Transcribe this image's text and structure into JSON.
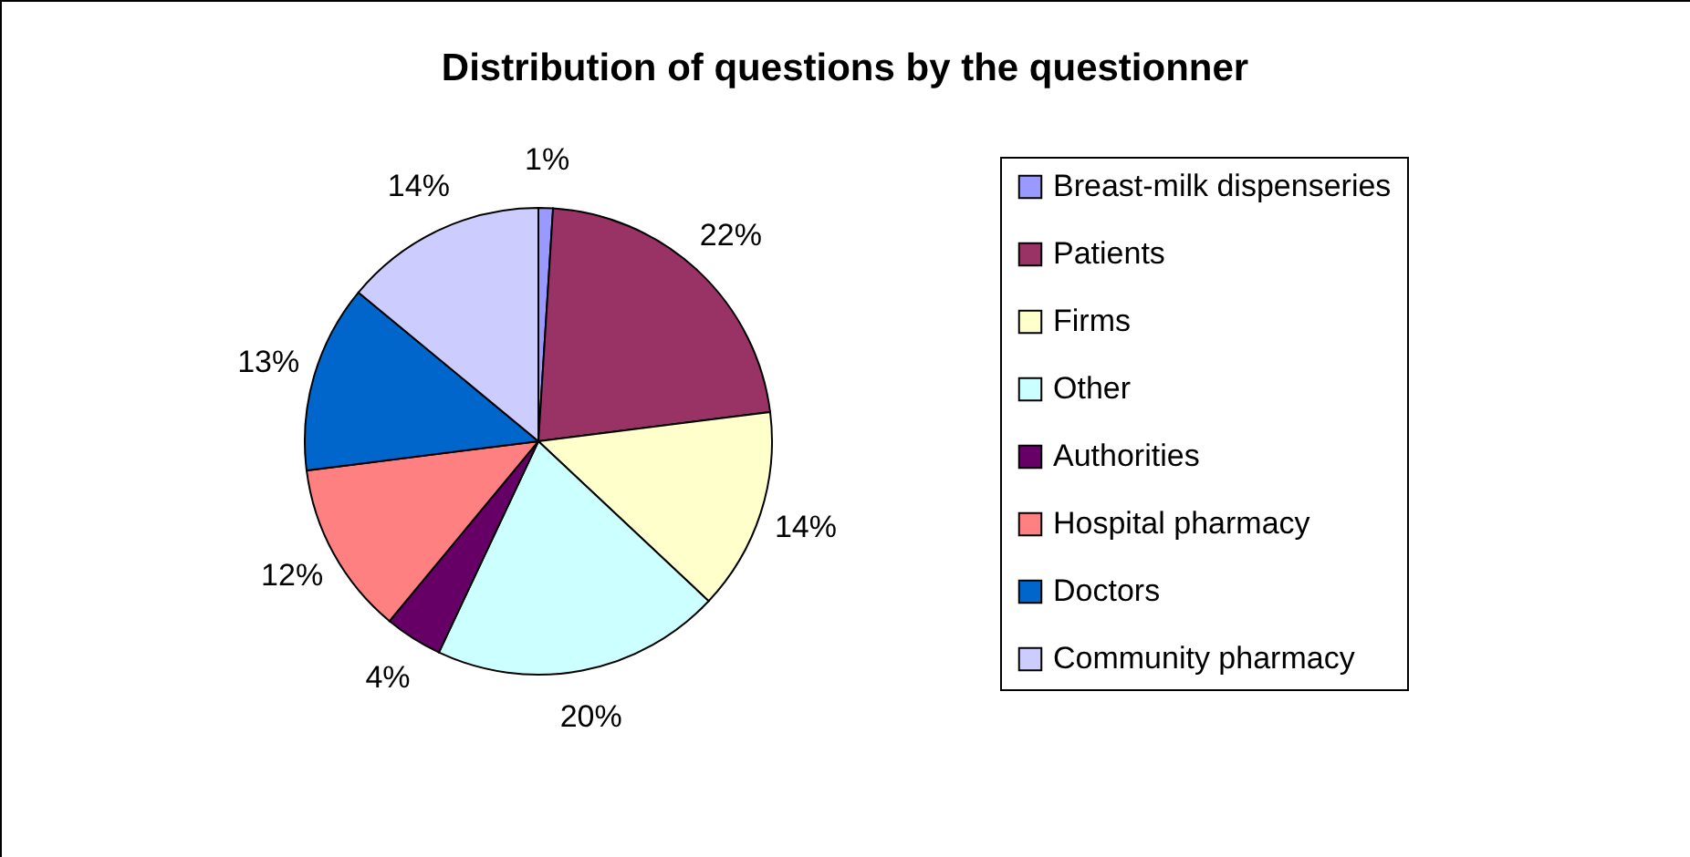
{
  "chart_data": {
    "type": "pie",
    "title": "Distribution of questions by the questionner",
    "categories": [
      "Breast-milk dispenseries",
      "Patients",
      "Firms",
      "Other",
      "Authorities",
      "Hospital pharmacy",
      "Doctors",
      "Community pharmacy"
    ],
    "values": [
      1,
      22,
      14,
      20,
      4,
      12,
      13,
      14
    ],
    "colors": [
      "#9999ff",
      "#993366",
      "#ffffcc",
      "#ccffff",
      "#660066",
      "#ff8080",
      "#0066cc",
      "#ccccff"
    ],
    "value_labels": [
      "1%",
      "22%",
      "14%",
      "20%",
      "4%",
      "12%",
      "13%",
      "14%"
    ],
    "legend": "right"
  }
}
